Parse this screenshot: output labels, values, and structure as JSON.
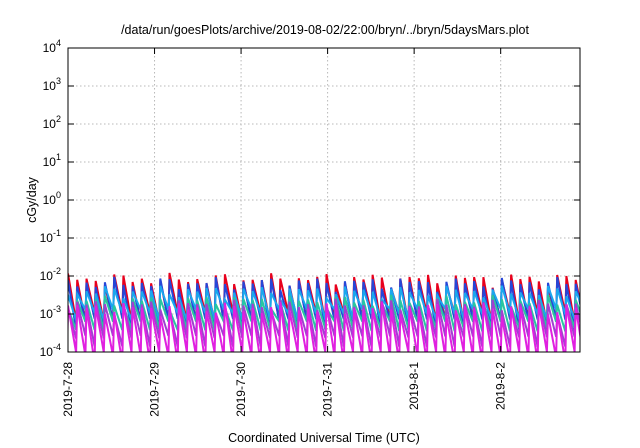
{
  "chart_data": {
    "type": "line",
    "title": "/data/run/goesPlots/archive/2019-08-02/22:00/bryn/../bryn/5daysMars.plot",
    "xlabel": "Coordinated Universal Time (UTC)",
    "ylabel": "cGy/day",
    "y_scale": "log",
    "ylim": [
      0.0001,
      10000
    ],
    "y_ticks": [
      {
        "base": "10",
        "exp": "-4"
      },
      {
        "base": "10",
        "exp": "-3"
      },
      {
        "base": "10",
        "exp": "-2"
      },
      {
        "base": "10",
        "exp": "-1"
      },
      {
        "base": "10",
        "exp": "0"
      },
      {
        "base": "10",
        "exp": "1"
      },
      {
        "base": "10",
        "exp": "2"
      },
      {
        "base": "10",
        "exp": "3"
      },
      {
        "base": "10",
        "exp": "4"
      }
    ],
    "x_ticks": [
      "2019-7-28",
      "2019-7-29",
      "2019-7-30",
      "2019-7-31",
      "2019-8-1",
      "2019-8-2"
    ],
    "xlim": [
      "2019-07-28 00:00",
      "2019-08-02 22:00"
    ],
    "grid": true,
    "sawtooth_period_hours": 2.56,
    "series": [
      {
        "color": "#e8001c",
        "peak": 0.0105,
        "trough": 0.0009
      },
      {
        "color": "#2646d8",
        "peak": 0.0083,
        "trough": 0.0007
      },
      {
        "color": "#1aa7ee",
        "peak": 0.005,
        "trough": 0.0012
      },
      {
        "color": "#28c6a0",
        "peak": 0.0028,
        "trough": 0.00055
      },
      {
        "color": "#a040d0",
        "peak": 0.0022,
        "trough": 0.00025
      },
      {
        "color": "#e020e0",
        "peak": 0.0018,
        "trough": 9e-05
      }
    ]
  }
}
